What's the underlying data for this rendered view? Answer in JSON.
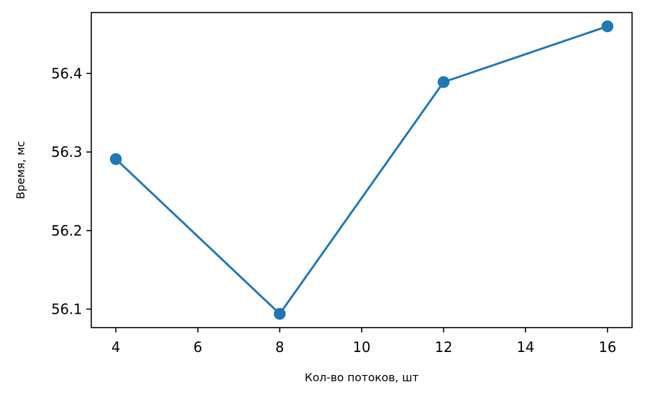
{
  "chart_data": {
    "type": "line",
    "title": "",
    "xlabel": "Кол-во потоков, шт",
    "ylabel": "Время, мс",
    "x": [
      4,
      8,
      12,
      16
    ],
    "series": [
      {
        "values": [
          56.291,
          56.094,
          56.389,
          56.46
        ],
        "color": "#1f77b4",
        "marker": "circle"
      }
    ],
    "xlim": [
      3.4,
      16.6
    ],
    "ylim": [
      56.0765,
      56.4775
    ],
    "xticks": [
      4,
      6,
      8,
      10,
      12,
      14,
      16
    ],
    "xtick_labels": [
      "4",
      "6",
      "8",
      "10",
      "12",
      "14",
      "16"
    ],
    "yticks": [
      56.1,
      56.2,
      56.3,
      56.4
    ],
    "ytick_labels": [
      "56.1",
      "56.2",
      "56.3",
      "56.4"
    ],
    "grid": false,
    "legend": "none"
  }
}
